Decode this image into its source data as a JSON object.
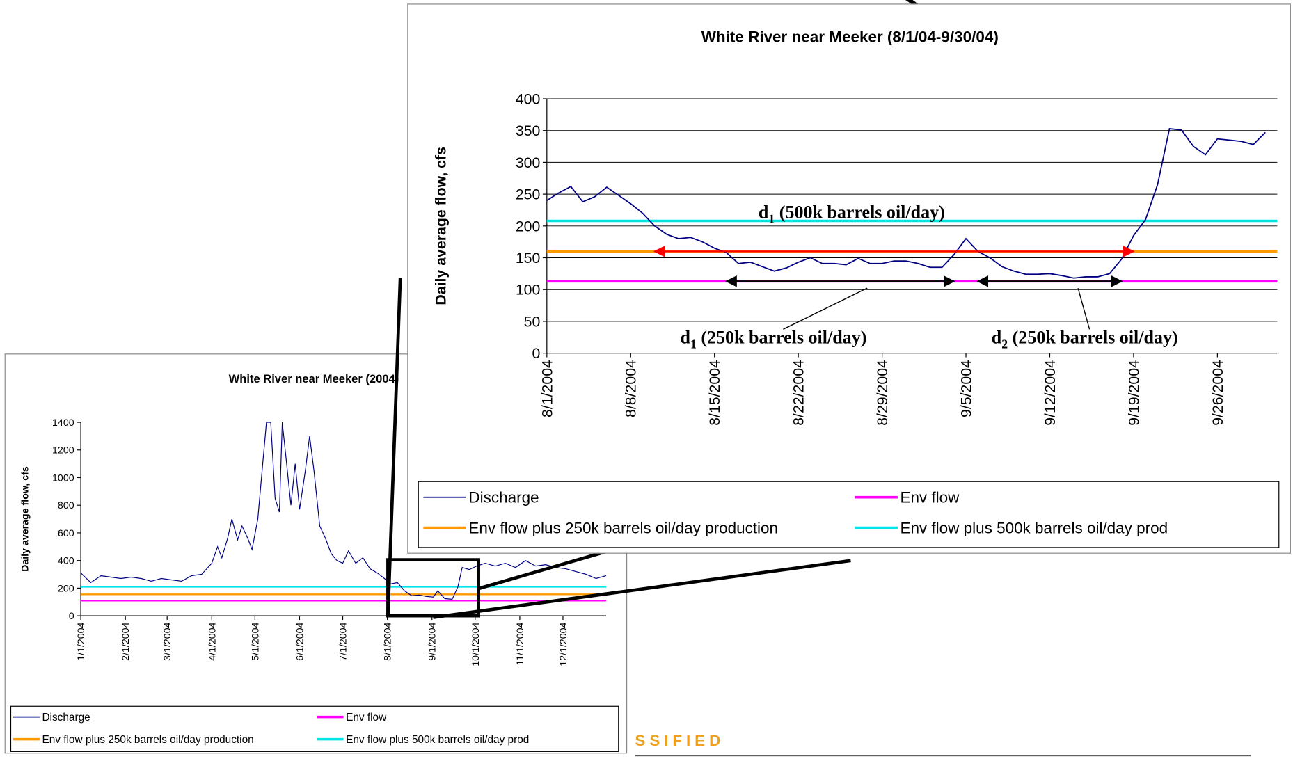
{
  "chart_data": [
    {
      "type": "line",
      "title": "White River near Meeker (2004)",
      "y_label": "Daily average flow, cfs",
      "x": [
        "1/1/2004",
        "1/8/2004",
        "1/15/2004",
        "1/22/2004",
        "1/29/2004",
        "2/5/2004",
        "2/12/2004",
        "2/19/2004",
        "2/26/2004",
        "3/4/2004",
        "3/11/2004",
        "3/18/2004",
        "3/25/2004",
        "4/1/2004",
        "4/5/2004",
        "4/8/2004",
        "4/12/2004",
        "4/15/2004",
        "4/19/2004",
        "4/22/2004",
        "4/26/2004",
        "4/29/2004",
        "5/3/2004",
        "5/6/2004",
        "5/9/2004",
        "5/12/2004",
        "5/15/2004",
        "5/18/2004",
        "5/20/2004",
        "5/23/2004",
        "5/26/2004",
        "5/29/2004",
        "6/1/2004",
        "6/5/2004",
        "6/8/2004",
        "6/11/2004",
        "6/15/2004",
        "6/19/2004",
        "6/23/2004",
        "6/27/2004",
        "7/1/2004",
        "7/5/2004",
        "7/10/2004",
        "7/15/2004",
        "7/20/2004",
        "7/25/2004",
        "7/30/2004",
        "8/3/2004",
        "8/8/2004",
        "8/13/2004",
        "8/18/2004",
        "8/23/2004",
        "8/28/2004",
        "9/2/2004",
        "9/5/2004",
        "9/10/2004",
        "9/15/2004",
        "9/19/2004",
        "9/22/2004",
        "9/27/2004",
        "10/2/2004",
        "10/8/2004",
        "10/15/2004",
        "10/22/2004",
        "10/29/2004",
        "11/5/2004",
        "11/12/2004",
        "11/19/2004",
        "11/26/2004",
        "12/3/2004",
        "12/10/2004",
        "12/17/2004",
        "12/24/2004",
        "12/31/2004"
      ],
      "series": [
        {
          "name": "Discharge",
          "color": "#000080",
          "values": [
            310,
            240,
            290,
            280,
            270,
            280,
            270,
            250,
            270,
            260,
            250,
            290,
            300,
            380,
            500,
            420,
            560,
            700,
            550,
            650,
            560,
            480,
            700,
            1050,
            1400,
            1400,
            850,
            750,
            1400,
            1100,
            800,
            1100,
            770,
            1050,
            1300,
            1050,
            650,
            560,
            450,
            400,
            380,
            470,
            380,
            420,
            340,
            310,
            270,
            230,
            240,
            180,
            145,
            150,
            140,
            135,
            180,
            124,
            120,
            210,
            350,
            335,
            360,
            380,
            360,
            380,
            350,
            400,
            360,
            370,
            350,
            340,
            320,
            300,
            270,
            290
          ]
        }
      ],
      "reference_lines": [
        {
          "name": "Env flow",
          "color": "#ff00ff",
          "value": 110
        },
        {
          "name": "Env flow plus 250k barrels oil/day production",
          "color": "#ff9900",
          "value": 155
        },
        {
          "name": "Env flow plus 500k barrels oil/day prod",
          "color": "#00e5e5",
          "value": 210
        }
      ],
      "xlim": [
        "1/1/2004",
        "12/31/2004"
      ],
      "xticks": [
        "1/1/2004",
        "2/1/2004",
        "3/1/2004",
        "4/1/2004",
        "5/1/2004",
        "6/1/2004",
        "7/1/2004",
        "8/1/2004",
        "9/1/2004",
        "10/1/2004",
        "11/1/2004",
        "12/1/2004"
      ],
      "ylim": [
        0,
        1400
      ],
      "yticks": [
        0,
        200,
        400,
        600,
        800,
        1000,
        1200,
        1400
      ],
      "grid": false
    },
    {
      "type": "line",
      "title": "White River near Meeker (8/1/04-9/30/04)",
      "y_label": "Daily average flow, cfs",
      "x": [
        "8/1/2004",
        "8/2/2004",
        "8/3/2004",
        "8/4/2004",
        "8/5/2004",
        "8/6/2004",
        "8/7/2004",
        "8/8/2004",
        "8/9/2004",
        "8/10/2004",
        "8/11/2004",
        "8/12/2004",
        "8/13/2004",
        "8/14/2004",
        "8/15/2004",
        "8/16/2004",
        "8/17/2004",
        "8/18/2004",
        "8/19/2004",
        "8/20/2004",
        "8/21/2004",
        "8/22/2004",
        "8/23/2004",
        "8/24/2004",
        "8/25/2004",
        "8/26/2004",
        "8/27/2004",
        "8/28/2004",
        "8/29/2004",
        "8/30/2004",
        "8/31/2004",
        "9/1/2004",
        "9/2/2004",
        "9/3/2004",
        "9/4/2004",
        "9/5/2004",
        "9/6/2004",
        "9/7/2004",
        "9/8/2004",
        "9/9/2004",
        "9/10/2004",
        "9/11/2004",
        "9/12/2004",
        "9/13/2004",
        "9/14/2004",
        "9/15/2004",
        "9/16/2004",
        "9/17/2004",
        "9/18/2004",
        "9/19/2004",
        "9/20/2004",
        "9/21/2004",
        "9/22/2004",
        "9/23/2004",
        "9/24/2004",
        "9/25/2004",
        "9/26/2004",
        "9/27/2004",
        "9/28/2004",
        "9/29/2004",
        "9/30/2004"
      ],
      "series": [
        {
          "name": "Discharge",
          "color": "#000080",
          "values": [
            240,
            252,
            262,
            238,
            246,
            261,
            248,
            235,
            220,
            200,
            187,
            180,
            182,
            175,
            165,
            158,
            141,
            143,
            136,
            129,
            134,
            143,
            150,
            141,
            141,
            139,
            149,
            141,
            141,
            145,
            145,
            141,
            135,
            135,
            155,
            180,
            160,
            150,
            136,
            129,
            124,
            124,
            125,
            122,
            118,
            120,
            120,
            125,
            148,
            185,
            210,
            265,
            353,
            351,
            325,
            312,
            337,
            335,
            333,
            328,
            347
          ]
        }
      ],
      "reference_lines": [
        {
          "name": "Env flow",
          "color": "#ff00ff",
          "value": 113
        },
        {
          "name": "Env flow plus 250k barrels oil/day production",
          "color": "#ff9900",
          "value": 160
        },
        {
          "name": "Env flow plus 500k barrels oil/day prod",
          "color": "#00e5e5",
          "value": 208
        }
      ],
      "arrows": [
        {
          "from": "8/10/2004",
          "to": "9/19/2004",
          "value": 160,
          "color": "#ff0000"
        },
        {
          "from": "8/16/2004",
          "to": "9/4/2004",
          "value": 113,
          "color": "#000000"
        },
        {
          "from": "9/6/2004",
          "to": "9/18/2004",
          "value": 113,
          "color": "#000000"
        }
      ],
      "annotations": [
        {
          "text": "d",
          "sub": "1",
          "rest": " (500k barrels oil/day)"
        },
        {
          "text": "d",
          "sub": "1",
          "rest": " (250k barrels oil/day)"
        },
        {
          "text": "d",
          "sub": "2",
          "rest": " (250k barrels oil/day)"
        }
      ],
      "xlim": [
        "8/1/2004",
        "10/1/2004"
      ],
      "xticks": [
        "8/1/2004",
        "8/8/2004",
        "8/15/2004",
        "8/22/2004",
        "8/29/2004",
        "9/5/2004",
        "9/12/2004",
        "9/19/2004",
        "9/26/2004"
      ],
      "ylim": [
        0,
        400
      ],
      "yticks": [
        0,
        50,
        100,
        150,
        200,
        250,
        300,
        350,
        400
      ],
      "grid": true
    }
  ],
  "footer_text": "SSIFIED"
}
